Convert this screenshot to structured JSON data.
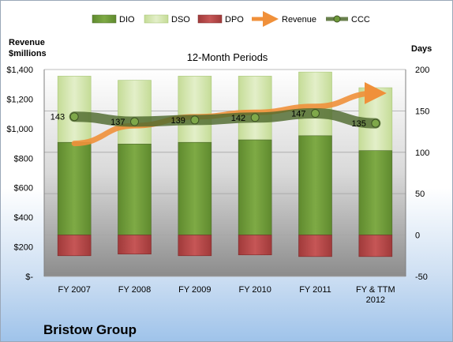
{
  "chart_data": {
    "type": "bar",
    "title": "12-Month Periods",
    "company": "Bristow Group",
    "left_axis": {
      "label_line1": "Revenue",
      "label_line2": "$millions",
      "ticks": [
        "$-",
        "$200",
        "$400",
        "$600",
        "$800",
        "$1,000",
        "$1,200",
        "$1,400"
      ],
      "ylim": [
        0,
        1400
      ]
    },
    "right_axis": {
      "label": "Days",
      "ticks": [
        "-50",
        "0",
        "50",
        "100",
        "150",
        "200"
      ],
      "ylim": [
        -50,
        200
      ]
    },
    "categories": [
      [
        "FY 2007"
      ],
      [
        "FY 2008"
      ],
      [
        "FY 2009"
      ],
      [
        "FY 2010"
      ],
      [
        "FY 2011"
      ],
      [
        "FY & TTM",
        "2012"
      ]
    ],
    "legend": [
      "DIO",
      "DSO",
      "DPO",
      "Revenue",
      "CCC"
    ],
    "series": [
      {
        "name": "DIO",
        "axis": "right",
        "color": "#6f9a3b",
        "values": [
          112,
          110,
          112,
          115,
          120,
          102
        ]
      },
      {
        "name": "DSO",
        "axis": "right",
        "color": "#cfe3a6",
        "values": [
          80,
          77,
          80,
          77,
          77,
          76
        ]
      },
      {
        "name": "DPO",
        "axis": "right",
        "color": "#b84a4a",
        "values": [
          -25,
          -23,
          -25,
          -24,
          -26,
          -26
        ]
      },
      {
        "name": "Revenue",
        "axis": "left",
        "color": "#f0903a",
        "values": [
          900,
          1020,
          1080,
          1110,
          1150,
          1240
        ]
      },
      {
        "name": "CCC",
        "axis": "right",
        "color": "#4f6a2e",
        "values": [
          143,
          137,
          139,
          142,
          147,
          135
        ]
      }
    ],
    "ccc_labels": [
      "143",
      "137",
      "139",
      "142",
      "147",
      "135"
    ],
    "grid": true,
    "legend_position": "top"
  }
}
